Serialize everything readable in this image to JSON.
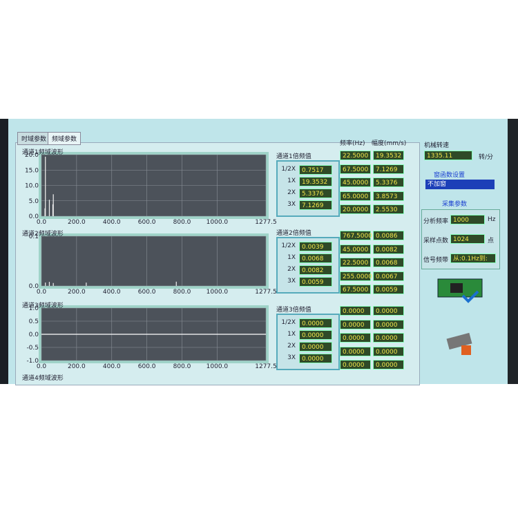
{
  "tabs": [
    "时域参数",
    "频域参数"
  ],
  "plots": [
    {
      "label": "通道1频域波形",
      "ylim": [
        0,
        20
      ],
      "yticks": [
        {
          "value": 0,
          "label": "0.0"
        },
        {
          "value": 5,
          "label": "5.0"
        },
        {
          "value": 10,
          "label": "10.0"
        },
        {
          "value": 15,
          "label": "15.0"
        },
        {
          "value": 20,
          "label": "20.0"
        }
      ],
      "xlim": [
        0,
        1277.5
      ],
      "xticks": [
        {
          "value": 0,
          "label": "0.0"
        },
        {
          "value": 200,
          "label": "200.0"
        },
        {
          "value": 400,
          "label": "400.0"
        },
        {
          "value": 600,
          "label": "600.0"
        },
        {
          "value": 800,
          "label": "800.0"
        },
        {
          "value": 1000,
          "label": "1000.0"
        },
        1277.5
      ]
    },
    {
      "label": "通道2频域波形",
      "ylim": [
        0,
        0.1
      ],
      "yticks": [
        {
          "value": 0,
          "label": "0.0"
        },
        0.1
      ],
      "xlim": [
        0,
        1277.5
      ],
      "xticks": [
        {
          "value": 0,
          "label": "0.0"
        },
        {
          "value": 200,
          "label": "200.0"
        },
        {
          "value": 400,
          "label": "400.0"
        },
        {
          "value": 600,
          "label": "600.0"
        },
        {
          "value": 800,
          "label": "800.0"
        },
        {
          "value": 1000,
          "label": "1000.0"
        },
        1277.5
      ]
    },
    {
      "label": "通道3频域波形",
      "ylim": [
        -1,
        1
      ],
      "yticks": [
        {
          "value": -1,
          "label": "-1.0"
        },
        {
          "value": -0.5,
          "label": "-0.5"
        },
        {
          "value": 0,
          "label": "0.0"
        },
        {
          "value": 0.5,
          "label": "0.5"
        },
        {
          "value": 1,
          "label": "1.0"
        }
      ],
      "xlim": [
        0,
        1277.5
      ],
      "xticks": [
        {
          "value": 0,
          "label": "0.0"
        },
        {
          "value": 200,
          "label": "200.0"
        },
        {
          "value": 400,
          "label": "400.0"
        },
        {
          "value": 600,
          "label": "600.0"
        },
        {
          "value": 800,
          "label": "800.0"
        },
        {
          "value": 1000,
          "label": "1000.0"
        },
        1277.5
      ]
    }
  ],
  "channel4_label": "通道4频域波形",
  "harmonics": [
    {
      "title": "通道1倍频值",
      "rows": [
        [
          "1/2X",
          "0.7517"
        ],
        [
          "1X",
          "19.3532"
        ],
        [
          "2X",
          "5.3376"
        ],
        [
          "3X",
          "7.1269"
        ]
      ]
    },
    {
      "title": "通道2倍频值",
      "rows": [
        [
          "1/2X",
          "0.0039"
        ],
        [
          "1X",
          "0.0068"
        ],
        [
          "2X",
          "0.0082"
        ],
        [
          "3X",
          "0.0059"
        ]
      ]
    },
    {
      "title": "通道3倍频值",
      "rows": [
        [
          "1/2X",
          "0.0000"
        ],
        [
          "1X",
          "0.0000"
        ],
        [
          "2X",
          "0.0000"
        ],
        [
          "3X",
          "0.0000"
        ]
      ]
    }
  ],
  "peaks_header": [
    "频率(Hz)",
    "幅度(mm/s)"
  ],
  "peaks": [
    [
      [
        "22.5000",
        "19.3532"
      ],
      [
        "67.5000",
        "7.1269"
      ],
      [
        "45.0000",
        "5.3376"
      ],
      [
        "65.0000",
        "3.8573"
      ],
      [
        "20.0000",
        "2.5530"
      ]
    ],
    [
      [
        "767.5000",
        "0.0086"
      ],
      [
        "45.0000",
        "0.0082"
      ],
      [
        "22.5000",
        "0.0068"
      ],
      [
        "255.0000",
        "0.0067"
      ],
      [
        "67.5000",
        "0.0059"
      ]
    ],
    [
      [
        "0.0000",
        "0.0000"
      ],
      [
        "0.0000",
        "0.0000"
      ],
      [
        "0.0000",
        "0.0000"
      ],
      [
        "0.0000",
        "0.0000"
      ],
      [
        "0.0000",
        "0.0000"
      ]
    ]
  ],
  "speed": {
    "label": "机械转速",
    "value": "1335.11",
    "unit": "转/分"
  },
  "window": {
    "label": "窗函数设置",
    "value": "不加窗"
  },
  "acquisition": {
    "title": "采集参数",
    "rows": [
      [
        "分析频率",
        "1000",
        "Hz"
      ],
      [
        "采样点数",
        "1024",
        "点"
      ],
      [
        "信号频带",
        "从:0.1Hz到:",
        ""
      ]
    ]
  }
}
